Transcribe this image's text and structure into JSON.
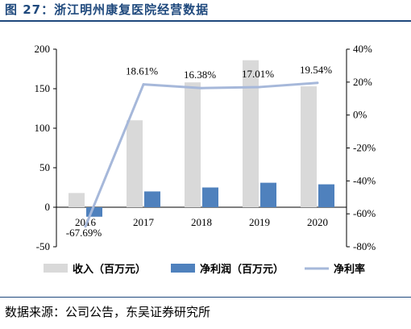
{
  "figure_title": "图 27：浙江明州康复医院经营数据",
  "source": "数据来源：公司公告，东吴证券研究所",
  "colors": {
    "revenue": "#d9d9d9",
    "net_profit": "#4f81bd",
    "net_margin": "#a6b8da",
    "axis": "#000000",
    "title": "#1f497d"
  },
  "chart_data": {
    "type": "bar",
    "categories": [
      "2016",
      "2017",
      "2018",
      "2019",
      "2020"
    ],
    "series": [
      {
        "name": "收入（百万元）",
        "kind": "bar",
        "axis": "left",
        "values": [
          18,
          110,
          158,
          186,
          153
        ]
      },
      {
        "name": "净利润（百万元）",
        "kind": "bar",
        "axis": "left",
        "values": [
          -12,
          20,
          25,
          31,
          29
        ]
      },
      {
        "name": "净利率",
        "kind": "line",
        "axis": "right",
        "values": [
          -67.69,
          18.61,
          16.38,
          17.01,
          19.54
        ]
      }
    ],
    "data_labels": [
      "-67.69%",
      "18.61%",
      "16.38%",
      "17.01%",
      "19.54%"
    ],
    "y_left": {
      "lim": [
        -50,
        200
      ],
      "ticks": [
        "200",
        "150",
        "100",
        "50",
        "0",
        "-50"
      ]
    },
    "y_right": {
      "lim": [
        -80,
        40
      ],
      "ticks": [
        "40%",
        "20%",
        "0%",
        "-20%",
        "-40%",
        "-60%",
        "-80%"
      ]
    },
    "grid": false,
    "legend_position": "bottom"
  }
}
